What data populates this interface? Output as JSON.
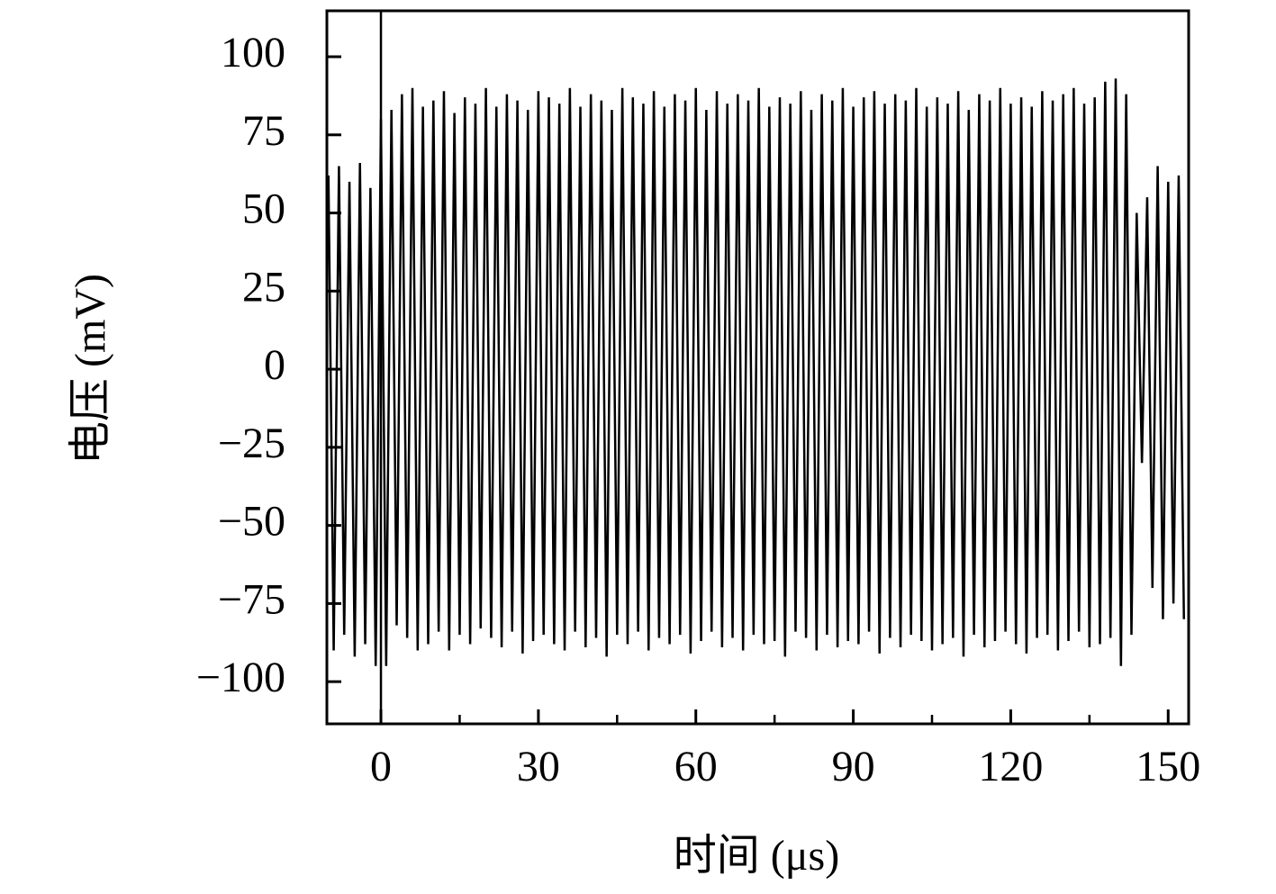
{
  "chart_data": {
    "type": "line",
    "xlabel": "时间 (μs)",
    "ylabel": "电压 (mV)",
    "xlim": [
      -10.3,
      153.9
    ],
    "ylim": [
      -113.5,
      114.7
    ],
    "xticks": [
      0,
      30,
      60,
      90,
      120,
      150
    ],
    "xminorticks": [
      15,
      45,
      75,
      105,
      135
    ],
    "yticks": [
      {
        "value": -100,
        "label": "−100"
      },
      {
        "value": -75,
        "label": "−75"
      },
      {
        "value": -50,
        "label": "−50"
      },
      {
        "value": -25,
        "label": "−25"
      },
      0,
      25,
      50,
      75,
      100
    ],
    "vlines": [
      0
    ],
    "x": [
      -10,
      -9,
      -8,
      -7,
      -6,
      -5,
      -4,
      -3,
      -2,
      -1,
      0,
      1,
      2,
      3,
      4,
      5,
      6,
      7,
      8,
      9,
      10,
      11,
      12,
      13,
      14,
      15,
      16,
      17,
      18,
      19,
      20,
      21,
      22,
      23,
      24,
      25,
      26,
      27,
      28,
      29,
      30,
      31,
      32,
      33,
      34,
      35,
      36,
      37,
      38,
      39,
      40,
      41,
      42,
      43,
      44,
      45,
      46,
      47,
      48,
      49,
      50,
      51,
      52,
      53,
      54,
      55,
      56,
      57,
      58,
      59,
      60,
      61,
      62,
      63,
      64,
      65,
      66,
      67,
      68,
      69,
      70,
      71,
      72,
      73,
      74,
      75,
      76,
      77,
      78,
      79,
      80,
      81,
      82,
      83,
      84,
      85,
      86,
      87,
      88,
      89,
      90,
      91,
      92,
      93,
      94,
      95,
      96,
      97,
      98,
      99,
      100,
      101,
      102,
      103,
      104,
      105,
      106,
      107,
      108,
      109,
      110,
      111,
      112,
      113,
      114,
      115,
      116,
      117,
      118,
      119,
      120,
      121,
      122,
      123,
      124,
      125,
      126,
      127,
      128,
      129,
      130,
      131,
      132,
      133,
      134,
      135,
      136,
      137,
      138,
      139,
      140,
      141,
      142,
      143,
      144,
      145,
      146,
      147,
      148,
      149,
      150,
      151,
      152,
      153
    ],
    "series": [
      {
        "color": "#000000",
        "values": [
          62,
          -90,
          65,
          -85,
          60,
          -92,
          66,
          -88,
          58,
          -95,
          80,
          -95,
          83,
          -82,
          88,
          -86,
          90,
          -90,
          84,
          -88,
          86,
          -84,
          89,
          -90,
          82,
          -85,
          87,
          -88,
          85,
          -83,
          90,
          -86,
          84,
          -89,
          88,
          -84,
          86,
          -91,
          83,
          -87,
          89,
          -85,
          87,
          -88,
          85,
          -90,
          90,
          -84,
          84,
          -89,
          88,
          -86,
          86,
          -92,
          83,
          -85,
          90,
          -88,
          87,
          -84,
          85,
          -90,
          89,
          -86,
          84,
          -88,
          88,
          -85,
          86,
          -91,
          90,
          -87,
          83,
          -84,
          89,
          -89,
          85,
          -86,
          88,
          -90,
          86,
          -85,
          90,
          -88,
          84,
          -87,
          87,
          -92,
          85,
          -84,
          89,
          -86,
          83,
          -90,
          88,
          -85,
          86,
          -89,
          90,
          -87,
          84,
          -88,
          87,
          -84,
          89,
          -91,
          85,
          -86,
          88,
          -89,
          86,
          -85,
          90,
          -87,
          84,
          -90,
          87,
          -88,
          85,
          -86,
          89,
          -92,
          83,
          -85,
          88,
          -89,
          86,
          -87,
          90,
          -84,
          85,
          -88,
          87,
          -91,
          84,
          -86,
          89,
          -85,
          86,
          -90,
          88,
          -87,
          90,
          -84,
          85,
          -89,
          87,
          -88,
          92,
          -86,
          93,
          -95,
          88,
          -85,
          50,
          -30,
          55,
          -70,
          65,
          -80,
          60,
          -75,
          62,
          -80
        ]
      }
    ]
  }
}
